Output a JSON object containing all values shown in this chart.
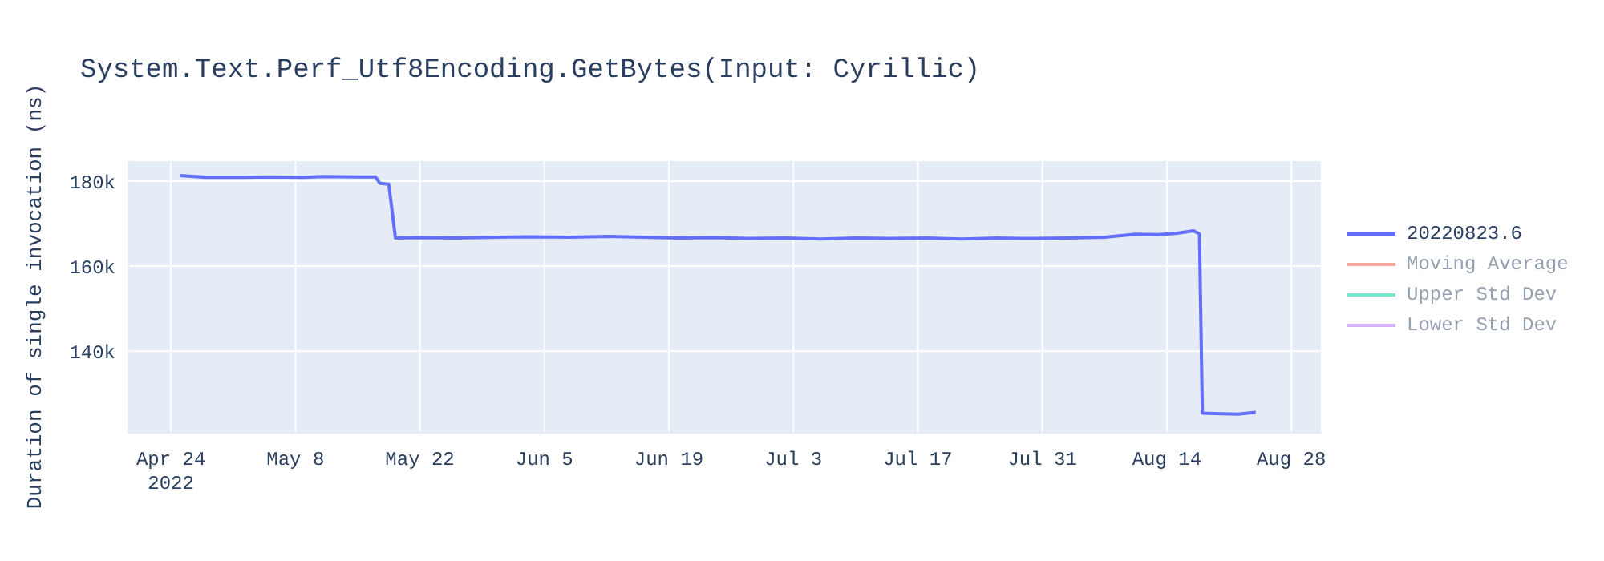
{
  "chart_data": {
    "type": "line",
    "title": "System.Text.Perf_Utf8Encoding.GetBytes(Input: Cyrillic)",
    "ylabel": "Duration of single invocation (ns)",
    "x": [
      "2022-04-25",
      "2022-04-28",
      "2022-05-02",
      "2022-05-05",
      "2022-05-09",
      "2022-05-11",
      "2022-05-15",
      "2022-05-17",
      "2022-05-17T12:00",
      "2022-05-18T12:00",
      "2022-05-19T06:00",
      "2022-05-22",
      "2022-05-26",
      "2022-05-31",
      "2022-06-03",
      "2022-06-08",
      "2022-06-12",
      "2022-06-16",
      "2022-06-20",
      "2022-06-24",
      "2022-06-28",
      "2022-07-02",
      "2022-07-06",
      "2022-07-10",
      "2022-07-14",
      "2022-07-18",
      "2022-07-22",
      "2022-07-26",
      "2022-07-30",
      "2022-08-03",
      "2022-08-07",
      "2022-08-10T12:00",
      "2022-08-13",
      "2022-08-15",
      "2022-08-17",
      "2022-08-17T16:00",
      "2022-08-18",
      "2022-08-20",
      "2022-08-22",
      "2022-08-24"
    ],
    "series": [
      {
        "name": "20220823.6",
        "color": "#636efa",
        "values": [
          181300,
          180900,
          180900,
          181000,
          180900,
          181100,
          181000,
          181000,
          179500,
          179300,
          166600,
          166700,
          166600,
          166800,
          166900,
          166800,
          167000,
          166800,
          166600,
          166700,
          166500,
          166600,
          166400,
          166600,
          166500,
          166600,
          166400,
          166600,
          166500,
          166600,
          166800,
          167500,
          167400,
          167700,
          168300,
          167600,
          125400,
          125300,
          125200,
          125600
        ]
      },
      {
        "name": "Moving Average",
        "color": "#ef553b",
        "values": [
          null,
          null,
          null,
          null,
          null,
          null,
          null,
          null,
          null,
          null,
          null,
          null,
          null,
          null,
          null,
          null,
          null,
          null,
          null,
          null,
          null,
          null,
          null,
          null,
          null,
          null,
          null,
          null,
          null,
          null,
          null,
          null,
          null,
          null,
          null,
          null,
          null,
          null,
          null,
          null
        ]
      },
      {
        "name": "Upper Std Dev",
        "color": "#00cc96",
        "values": [
          null,
          null,
          null,
          null,
          null,
          null,
          null,
          null,
          null,
          null,
          null,
          null,
          null,
          null,
          null,
          null,
          null,
          null,
          null,
          null,
          null,
          null,
          null,
          null,
          null,
          null,
          null,
          null,
          null,
          null,
          null,
          null,
          null,
          null,
          null,
          null,
          null,
          null,
          null,
          null
        ]
      },
      {
        "name": "Lower Std Dev",
        "color": "#ab63fa",
        "values": [
          null,
          null,
          null,
          null,
          null,
          null,
          null,
          null,
          null,
          null,
          null,
          null,
          null,
          null,
          null,
          null,
          null,
          null,
          null,
          null,
          null,
          null,
          null,
          null,
          null,
          null,
          null,
          null,
          null,
          null,
          null,
          null,
          null,
          null,
          null,
          null,
          null,
          null,
          null,
          null
        ]
      }
    ],
    "xlim": [
      "2022-04-19T05:00",
      "2022-08-31T10:00"
    ],
    "xticks": [
      {
        "value": "2022-04-24",
        "label": "Apr 24\n2022"
      },
      {
        "value": "2022-05-08",
        "label": "May 8"
      },
      {
        "value": "2022-05-22",
        "label": "May 22"
      },
      {
        "value": "2022-06-05",
        "label": "Jun 5"
      },
      {
        "value": "2022-06-19",
        "label": "Jun 19"
      },
      {
        "value": "2022-07-03",
        "label": "Jul 3"
      },
      {
        "value": "2022-07-17",
        "label": "Jul 17"
      },
      {
        "value": "2022-07-31",
        "label": "Jul 31"
      },
      {
        "value": "2022-08-14",
        "label": "Aug 14"
      },
      {
        "value": "2022-08-28",
        "label": "Aug 28"
      }
    ],
    "ylim": [
      120800,
      184900
    ],
    "yticks": [
      {
        "value": 140000,
        "label": "140k"
      },
      {
        "value": 160000,
        "label": "160k"
      },
      {
        "value": 180000,
        "label": "180k"
      }
    ],
    "grid": true,
    "legend": "top right",
    "marker": "none",
    "line_style": "solid"
  }
}
